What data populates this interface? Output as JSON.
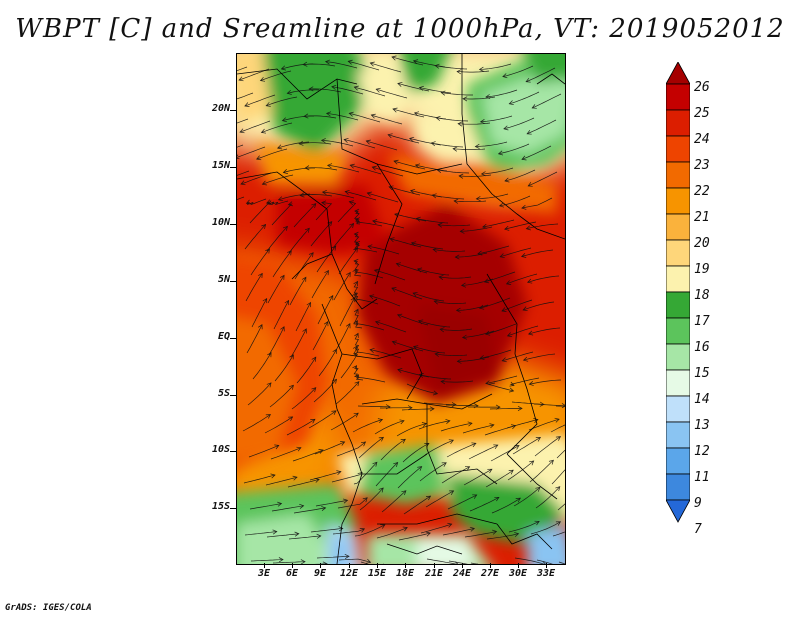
{
  "title": "WBPT [C] and Sreamline at 1000hPa, VT: 2019052012",
  "footer": "GrADS: IGES/COLA",
  "map": {
    "lat_labels": [
      "20N",
      "15N",
      "10N",
      "5N",
      "EQ",
      "5S",
      "10S",
      "15S"
    ],
    "lon_labels": [
      "3E",
      "6E",
      "9E",
      "12E",
      "15E",
      "18E",
      "21E",
      "24E",
      "27E",
      "30E",
      "33E"
    ]
  },
  "colorbar": {
    "labels": [
      "26",
      "25",
      "24",
      "23",
      "22",
      "21",
      "20",
      "19",
      "18",
      "17",
      "16",
      "15",
      "14",
      "13",
      "12",
      "11",
      "9",
      "7"
    ],
    "colors": [
      "#a50000",
      "#c40000",
      "#dc1e00",
      "#ee4400",
      "#f26a00",
      "#f79400",
      "#fab23c",
      "#fed67a",
      "#fcf2ae",
      "#35a835",
      "#5cc45c",
      "#a6e6a6",
      "#e6fae6",
      "#bfe0fa",
      "#8ac4f2",
      "#5ba6ea",
      "#3d88de",
      "#2468d8"
    ]
  }
}
